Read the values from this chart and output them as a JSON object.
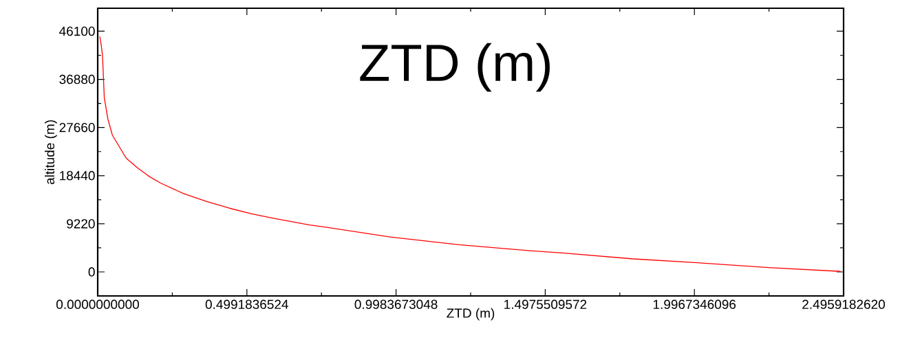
{
  "chart_data": {
    "type": "line",
    "title": "ZTD (m)",
    "xlabel": "ZTD (m)",
    "ylabel": "altitude (m)",
    "x": [
      0.007,
      0.011,
      0.016,
      0.022,
      0.034,
      0.049,
      0.072,
      0.095,
      0.134,
      0.172,
      0.211,
      0.287,
      0.364,
      0.441,
      0.517,
      0.594,
      0.709,
      0.748,
      0.978,
      1.208,
      1.438,
      1.561,
      1.791,
      2.022,
      2.252,
      2.486
    ],
    "values": [
      45100,
      43700,
      41500,
      33400,
      29300,
      26200,
      24000,
      21800,
      19900,
      18300,
      17000,
      15000,
      13500,
      12200,
      11100,
      10200,
      9000,
      8700,
      6700,
      5200,
      4100,
      3600,
      2500,
      1700,
      800,
      100
    ],
    "color": "#ff0000",
    "xlim": [
      0,
      2.495918262
    ],
    "ylim": [
      -4600,
      50500
    ],
    "xticks": [
      {
        "value": 0,
        "label": "0.0000000000"
      },
      {
        "value": 0.4991836524,
        "label": "0.4991836524"
      },
      {
        "value": 0.9983673048,
        "label": "0.9983673048"
      },
      {
        "value": 1.4975509572,
        "label": "1.4975509572"
      },
      {
        "value": 1.9967346096,
        "label": "1.9967346096"
      },
      {
        "value": 2.495918262,
        "label": "2.4959182620"
      }
    ],
    "yticks": [
      0,
      9220,
      18440,
      27660,
      36880,
      46100
    ]
  }
}
